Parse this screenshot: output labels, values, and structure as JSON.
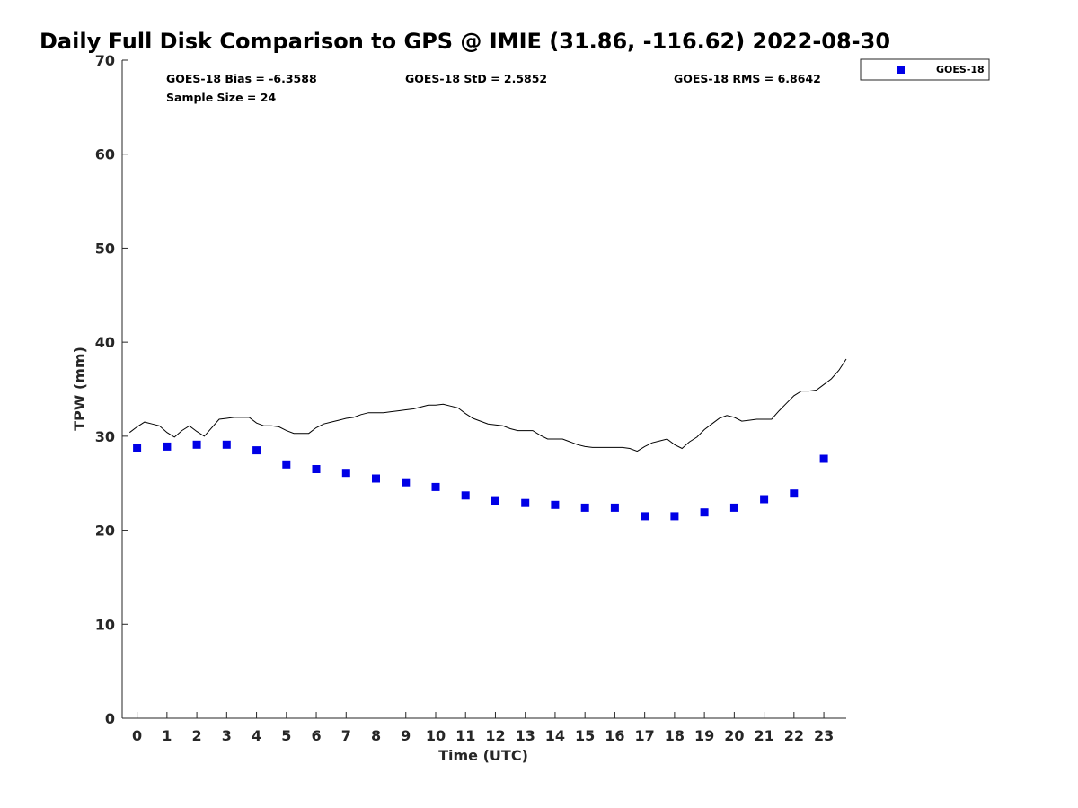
{
  "chart_data": {
    "type": "scatter",
    "title": "Daily Full Disk Comparison to GPS @ IMIE (31.86, -116.62) 2022-08-30",
    "xlabel": "Time (UTC)",
    "ylabel": "TPW (mm)",
    "xlim": [
      -0.5,
      23.75
    ],
    "ylim": [
      0,
      70
    ],
    "x_ticks": [
      "0",
      "1",
      "2",
      "3",
      "4",
      "5",
      "6",
      "7",
      "8",
      "9",
      "10",
      "11",
      "12",
      "13",
      "14",
      "15",
      "16",
      "17",
      "18",
      "19",
      "20",
      "21",
      "22",
      "23"
    ],
    "y_ticks": [
      "0",
      "10",
      "20",
      "30",
      "40",
      "50",
      "60",
      "70"
    ],
    "grid": false,
    "legend_position": "top-right outside",
    "series": [
      {
        "name": "GOES-18",
        "style": "markers",
        "marker": "square",
        "color": "#0000e6",
        "x": [
          0,
          1,
          2,
          3,
          4,
          5,
          6,
          7,
          8,
          9,
          10,
          11,
          12,
          13,
          14,
          15,
          16,
          17,
          18,
          19,
          20,
          21,
          22,
          23
        ],
        "y": [
          28.7,
          28.9,
          29.1,
          29.1,
          28.5,
          27.0,
          26.5,
          26.1,
          25.5,
          25.1,
          24.6,
          23.7,
          23.1,
          22.9,
          22.7,
          22.4,
          22.4,
          21.5,
          21.5,
          21.9,
          22.4,
          23.3,
          23.9,
          27.6
        ]
      },
      {
        "style": "line",
        "color": "#000000",
        "x": [
          -0.25,
          0,
          0.25,
          0.5,
          0.75,
          1,
          1.25,
          1.5,
          1.75,
          2,
          2.25,
          2.5,
          2.75,
          3,
          3.25,
          3.5,
          3.75,
          4,
          4.25,
          4.5,
          4.75,
          5,
          5.25,
          5.5,
          5.75,
          6,
          6.25,
          6.5,
          6.75,
          7,
          7.25,
          7.5,
          7.75,
          8,
          8.25,
          8.5,
          8.75,
          9,
          9.25,
          9.5,
          9.75,
          10,
          10.25,
          10.5,
          10.75,
          11,
          11.25,
          11.5,
          11.75,
          12,
          12.25,
          12.5,
          12.75,
          13,
          13.25,
          13.5,
          13.75,
          14,
          14.25,
          14.5,
          14.75,
          15,
          15.25,
          15.5,
          15.75,
          16,
          16.25,
          16.5,
          16.75,
          17,
          17.25,
          17.5,
          17.75,
          18,
          18.25,
          18.5,
          18.75,
          19,
          19.25,
          19.5,
          19.75,
          20,
          20.25,
          20.5,
          20.75,
          21,
          21.25,
          21.5,
          21.75,
          22,
          22.25,
          22.5,
          22.75,
          23,
          23.25,
          23.5,
          23.75
        ],
        "y": [
          30.4,
          31.0,
          31.5,
          31.3,
          31.1,
          30.4,
          29.9,
          30.6,
          31.1,
          30.5,
          30.0,
          30.9,
          31.8,
          31.9,
          32.0,
          32.0,
          32.0,
          31.4,
          31.1,
          31.1,
          31.0,
          30.6,
          30.3,
          30.3,
          30.3,
          30.9,
          31.3,
          31.5,
          31.7,
          31.9,
          32.0,
          32.3,
          32.5,
          32.5,
          32.5,
          32.6,
          32.7,
          32.8,
          32.9,
          33.1,
          33.3,
          33.3,
          33.4,
          33.2,
          33.0,
          32.4,
          31.9,
          31.6,
          31.3,
          31.2,
          31.1,
          30.8,
          30.6,
          30.6,
          30.6,
          30.1,
          29.7,
          29.7,
          29.7,
          29.4,
          29.1,
          28.9,
          28.8,
          28.8,
          28.8,
          28.8,
          28.8,
          28.7,
          28.4,
          28.9,
          29.3,
          29.5,
          29.7,
          29.1,
          28.7,
          29.4,
          29.9,
          30.7,
          31.3,
          31.9,
          32.2,
          32.0,
          31.6,
          31.7,
          31.8,
          31.8,
          31.8,
          32.7,
          33.5,
          34.3,
          34.8,
          34.8,
          34.9,
          35.5,
          36.1,
          37.0,
          38.2
        ]
      }
    ],
    "stats": {
      "bias": "GOES-18 Bias = -6.3588",
      "std": "GOES-18 StD = 2.5852",
      "rms": "GOES-18 RMS = 6.8642",
      "sample_size": "Sample Size = 24"
    },
    "legend": {
      "label": "GOES-18",
      "marker_color": "#0000e6"
    }
  }
}
